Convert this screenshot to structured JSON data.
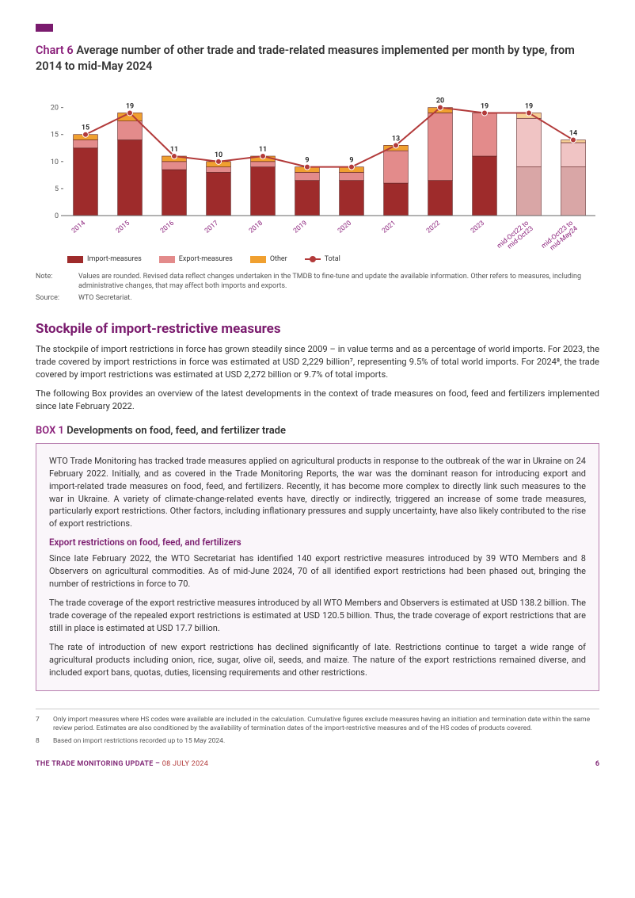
{
  "chart": {
    "title_lead": "Chart 6",
    "title_rest": "Average number of other trade and trade-related measures implemented per month by type, from 2014 to mid-May 2024",
    "type": "stacked-bar-with-line",
    "categories": [
      "2014",
      "2015",
      "2016",
      "2017",
      "2018",
      "2019",
      "2020",
      "2021",
      "2022",
      "2023",
      "mid-Oct22 to mid-Oct23",
      "mid-Oct23 to mid-May24"
    ],
    "series": {
      "import_measures": {
        "label": "Import-measures",
        "color": "#9e2b2b",
        "values": [
          12.5,
          14,
          8.5,
          8,
          9,
          6.5,
          6.5,
          6,
          6.5,
          11,
          9,
          9
        ]
      },
      "export_measures": {
        "label": "Export-measures",
        "color": "#e38b8b",
        "values": [
          1.5,
          3.5,
          1.5,
          1,
          1,
          1.5,
          1.5,
          6,
          12.5,
          8,
          9,
          4.5
        ]
      },
      "other": {
        "label": "Other",
        "color": "#f0a030",
        "values": [
          1,
          1.5,
          1,
          1,
          1,
          1,
          1,
          1,
          1,
          0,
          1,
          0.5
        ]
      }
    },
    "line_total": {
      "label": "Total",
      "color": "#b23a3a",
      "values": [
        15,
        19,
        11,
        10,
        11,
        9,
        9,
        13,
        20,
        19,
        19,
        14
      ]
    },
    "point_labels": [
      "15",
      "19",
      "11",
      "10",
      "11",
      "9",
      "9",
      "13",
      "20",
      "19",
      "19",
      "14"
    ],
    "ylim": [
      0,
      22
    ],
    "yticks": [
      0,
      5,
      10,
      15,
      20
    ],
    "background_color": "#ffffff",
    "grid": false,
    "bar_width": 0.55,
    "tick_fontsize": 9,
    "label_fontsize": 9,
    "last_two_faded": true
  },
  "legend": {
    "import": "Import-measures",
    "export": "Export-measures",
    "other": "Other",
    "total": "Total"
  },
  "notes": {
    "note_label": "Note:",
    "note_text": "Values are rounded. Revised data reflect changes undertaken in the TMDB to fine-tune and update the available information. Other refers to measures, including administrative changes, that may affect both imports and exports.",
    "source_label": "Source:",
    "source_text": "WTO Secretariat."
  },
  "section": {
    "heading": "Stockpile of import-restrictive measures",
    "p1": "The stockpile of import restrictions in force has grown steadily since 2009 – in value terms and as a percentage of world imports. For 2023, the trade covered by import restrictions in force was estimated at USD 2,229 billion⁷, representing 9.5% of total world imports. For 2024⁸, the trade covered by import restrictions was estimated at USD 2,272 billion or 9.7% of total imports.",
    "p2": "The following Box provides an overview of the latest developments in the context of trade measures on food, feed and fertilizers implemented since late February 2022."
  },
  "box": {
    "lead": "BOX 1",
    "title": "Developments on food, feed, and fertilizer trade",
    "p1": "WTO Trade Monitoring has tracked trade measures applied on agricultural products in response to the outbreak of the war in Ukraine on 24 February 2022. Initially, and as covered in the Trade Monitoring Reports, the war was the dominant reason for introducing export and import-related trade measures on food, feed, and fertilizers. Recently, it has become more complex to directly link such measures to the war in Ukraine. A variety of climate-change-related events have, directly or indirectly, triggered an increase of some trade measures, particularly export restrictions. Other factors, including inflationary pressures and supply uncertainty, have also likely contributed to the rise of export restrictions.",
    "sub": "Export restrictions on food, feed, and fertilizers",
    "p2": "Since late February 2022, the WTO Secretariat has identified 140 export restrictive measures introduced by 39 WTO Members and 8 Observers on agricultural commodities. As of mid-June 2024, 70 of all identified export restrictions had been phased out, bringing the number of restrictions in force to 70.",
    "p3": "The trade coverage of the export restrictive measures introduced by all WTO Members and Observers is estimated at USD 138.2 billion. The trade coverage of the repealed export restrictions is estimated at USD 120.5 billion. Thus, the trade coverage of export restrictions that are still in place is estimated at USD 17.7 billion.",
    "p4": "The rate of introduction of new export restrictions has declined significantly of late. Restrictions continue to target a wide range of agricultural products including onion, rice, sugar, olive oil, seeds, and maize. The nature of the export restrictions remained diverse, and included export bans, quotas, duties, licensing requirements and other restrictions."
  },
  "footnotes": {
    "n7": "Only import measures where HS codes were available are included in the calculation. Cumulative figures exclude measures having an initiation and termination date within the same review period. Estimates are also conditioned by the availability of termination dates of the import-restrictive measures and of the HS codes of products covered.",
    "n8": "Based on import restrictions recorded up to 15 May 2024."
  },
  "footer": {
    "left": "THE TRADE MONITORING UPDATE",
    "sep": " – ",
    "date": "08 JULY 2024",
    "page": "6"
  }
}
